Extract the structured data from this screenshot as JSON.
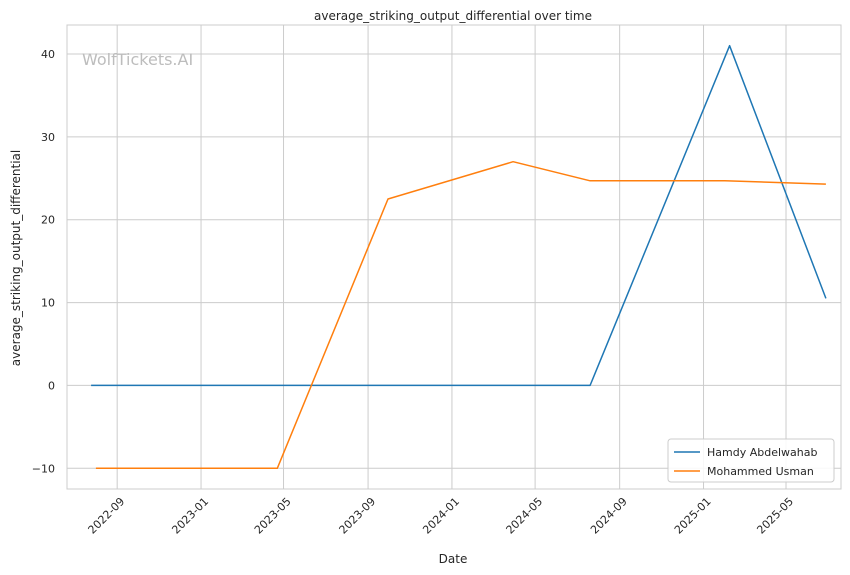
{
  "chart_data": {
    "type": "line",
    "title": "average_striking_output_differential over time",
    "xlabel": "Date",
    "ylabel": "average_striking_output_differential",
    "watermark": "WolfTickets.AI",
    "x_tick_labels": [
      "2022-09",
      "2023-01",
      "2023-05",
      "2023-09",
      "2024-01",
      "2024-05",
      "2024-09",
      "2025-01",
      "2025-05"
    ],
    "x_tick_dates": [
      "2022-09-01",
      "2023-01-01",
      "2023-05-01",
      "2023-09-01",
      "2024-01-01",
      "2024-05-01",
      "2024-09-01",
      "2025-01-01",
      "2025-05-01"
    ],
    "xlim": [
      "2022-06-20",
      "2025-07-20"
    ],
    "y_ticks": [
      -10,
      0,
      10,
      20,
      30,
      40
    ],
    "y_tick_labels": [
      "−10",
      "0",
      "10",
      "20",
      "30",
      "40"
    ],
    "ylim": [
      -12.5,
      43.5
    ],
    "grid": true,
    "legend_position": "bottom-right",
    "series": [
      {
        "name": "Hamdy Abdelwahab",
        "color": "#1f77b4",
        "x": [
          "2022-07-25",
          "2024-07-20",
          "2025-02-08",
          "2025-06-28"
        ],
        "y": [
          0,
          0,
          41,
          10.5
        ]
      },
      {
        "name": "Mohammed Usman",
        "color": "#ff7f0e",
        "x": [
          "2022-08-01",
          "2023-04-22",
          "2023-09-30",
          "2024-03-30",
          "2024-07-20",
          "2025-02-01",
          "2025-06-28"
        ],
        "y": [
          -10,
          -10,
          22.5,
          27,
          24.7,
          24.7,
          24.3
        ]
      }
    ]
  }
}
